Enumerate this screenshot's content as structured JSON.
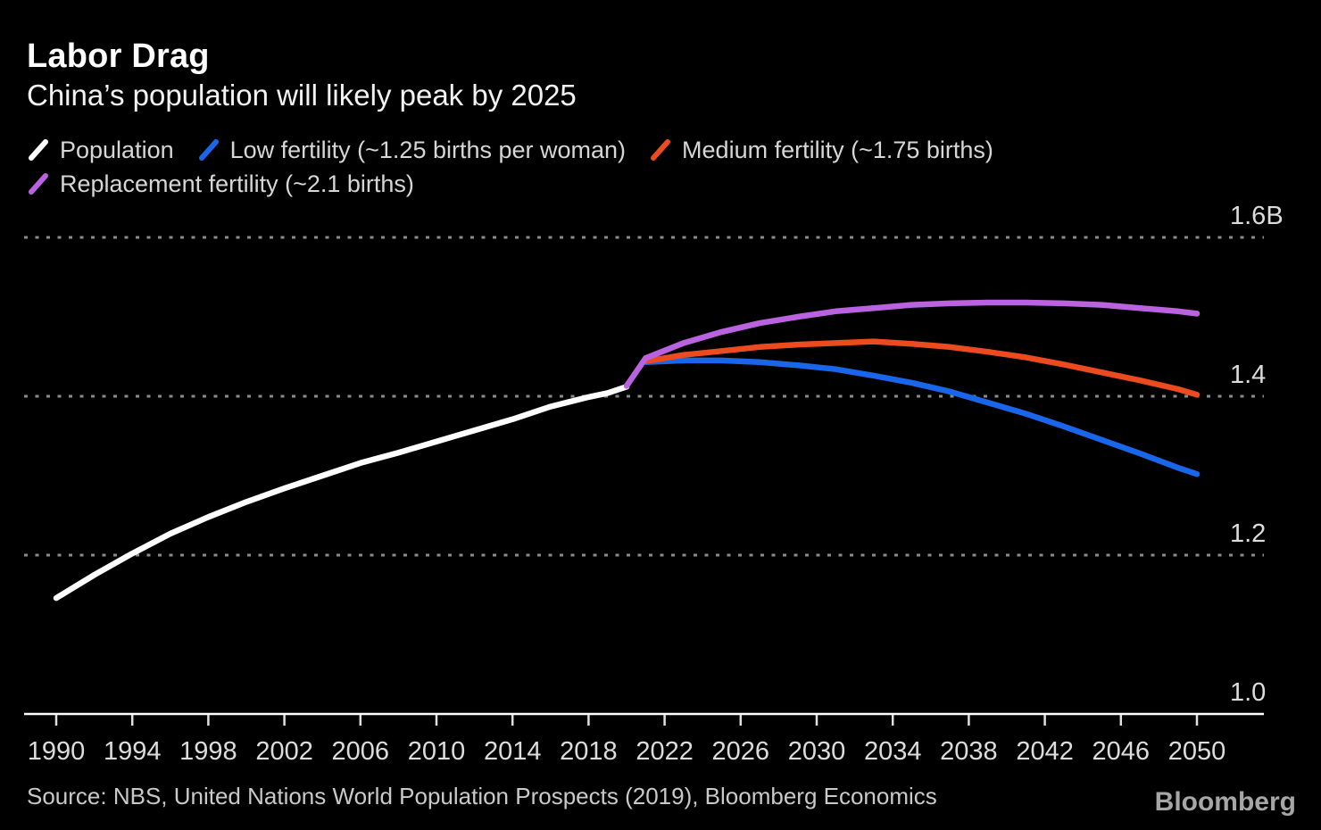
{
  "header": {
    "title": "Labor Drag",
    "subtitle": "China’s population will likely peak by 2025"
  },
  "legend": {
    "position": "top-left",
    "items": [
      {
        "label": "Population",
        "color": "#ffffff"
      },
      {
        "label": "Low fertility (~1.25 births per woman)",
        "color": "#1a66ea"
      },
      {
        "label": "Medium fertility (~1.75 births)",
        "color": "#eb4b1e"
      },
      {
        "label": "Replacement fertility (~2.1 births)",
        "color": "#bb62e0"
      }
    ]
  },
  "footer": {
    "source": "Source: NBS, United Nations World Population Prospects (2019), Bloomberg Economics",
    "brand": "Bloomberg"
  },
  "chart_data": {
    "type": "line",
    "title": "Labor Drag",
    "subtitle": "China’s population will likely peak by 2025",
    "unit": "billions of people",
    "xlim": [
      1988.3,
      2053.5
    ],
    "ylim": [
      1.0,
      1.66
    ],
    "grid": "horizontal-dotted",
    "xticks": [
      1990,
      1994,
      1998,
      2002,
      2006,
      2010,
      2014,
      2018,
      2022,
      2026,
      2030,
      2034,
      2038,
      2042,
      2046,
      2050
    ],
    "yticks": [
      {
        "value": 1.6,
        "label": "1.6B"
      },
      {
        "value": 1.4,
        "label": "1.4"
      },
      {
        "value": 1.2,
        "label": "1.2"
      },
      {
        "value": 1.0,
        "label": "1.0"
      }
    ],
    "series": [
      {
        "name": "Population",
        "color": "#ffffff",
        "x": [
          1990,
          1992,
          1994,
          1996,
          1998,
          2000,
          2002,
          2004,
          2006,
          2008,
          2010,
          2012,
          2014,
          2016,
          2018,
          2019,
          2020
        ],
        "values": [
          1.146,
          1.175,
          1.202,
          1.227,
          1.248,
          1.267,
          1.284,
          1.3,
          1.316,
          1.329,
          1.343,
          1.357,
          1.371,
          1.387,
          1.399,
          1.404,
          1.412
        ]
      },
      {
        "name": "Low fertility (~1.25 births per woman)",
        "color": "#1a66ea",
        "x": [
          2021,
          2023,
          2025,
          2027,
          2029,
          2031,
          2033,
          2035,
          2037,
          2039,
          2041,
          2043,
          2045,
          2047,
          2049,
          2050
        ],
        "values": [
          1.443,
          1.445,
          1.445,
          1.443,
          1.439,
          1.434,
          1.426,
          1.417,
          1.406,
          1.392,
          1.378,
          1.362,
          1.345,
          1.328,
          1.31,
          1.302
        ]
      },
      {
        "name": "Medium fertility (~1.75 births)",
        "color": "#eb4b1e",
        "x": [
          2021,
          2023,
          2025,
          2027,
          2029,
          2031,
          2033,
          2035,
          2037,
          2039,
          2041,
          2043,
          2045,
          2047,
          2049,
          2050
        ],
        "values": [
          1.444,
          1.452,
          1.457,
          1.462,
          1.465,
          1.467,
          1.469,
          1.466,
          1.462,
          1.456,
          1.449,
          1.44,
          1.43,
          1.42,
          1.409,
          1.402
        ]
      },
      {
        "name": "Replacement fertility (~2.1 births)",
        "color": "#bb62e0",
        "x": [
          2020,
          2021,
          2023,
          2025,
          2027,
          2029,
          2031,
          2033,
          2035,
          2037,
          2039,
          2041,
          2043,
          2045,
          2047,
          2049,
          2050
        ],
        "values": [
          1.413,
          1.448,
          1.467,
          1.481,
          1.492,
          1.5,
          1.507,
          1.511,
          1.515,
          1.517,
          1.518,
          1.518,
          1.517,
          1.515,
          1.511,
          1.507,
          1.504
        ]
      }
    ]
  }
}
